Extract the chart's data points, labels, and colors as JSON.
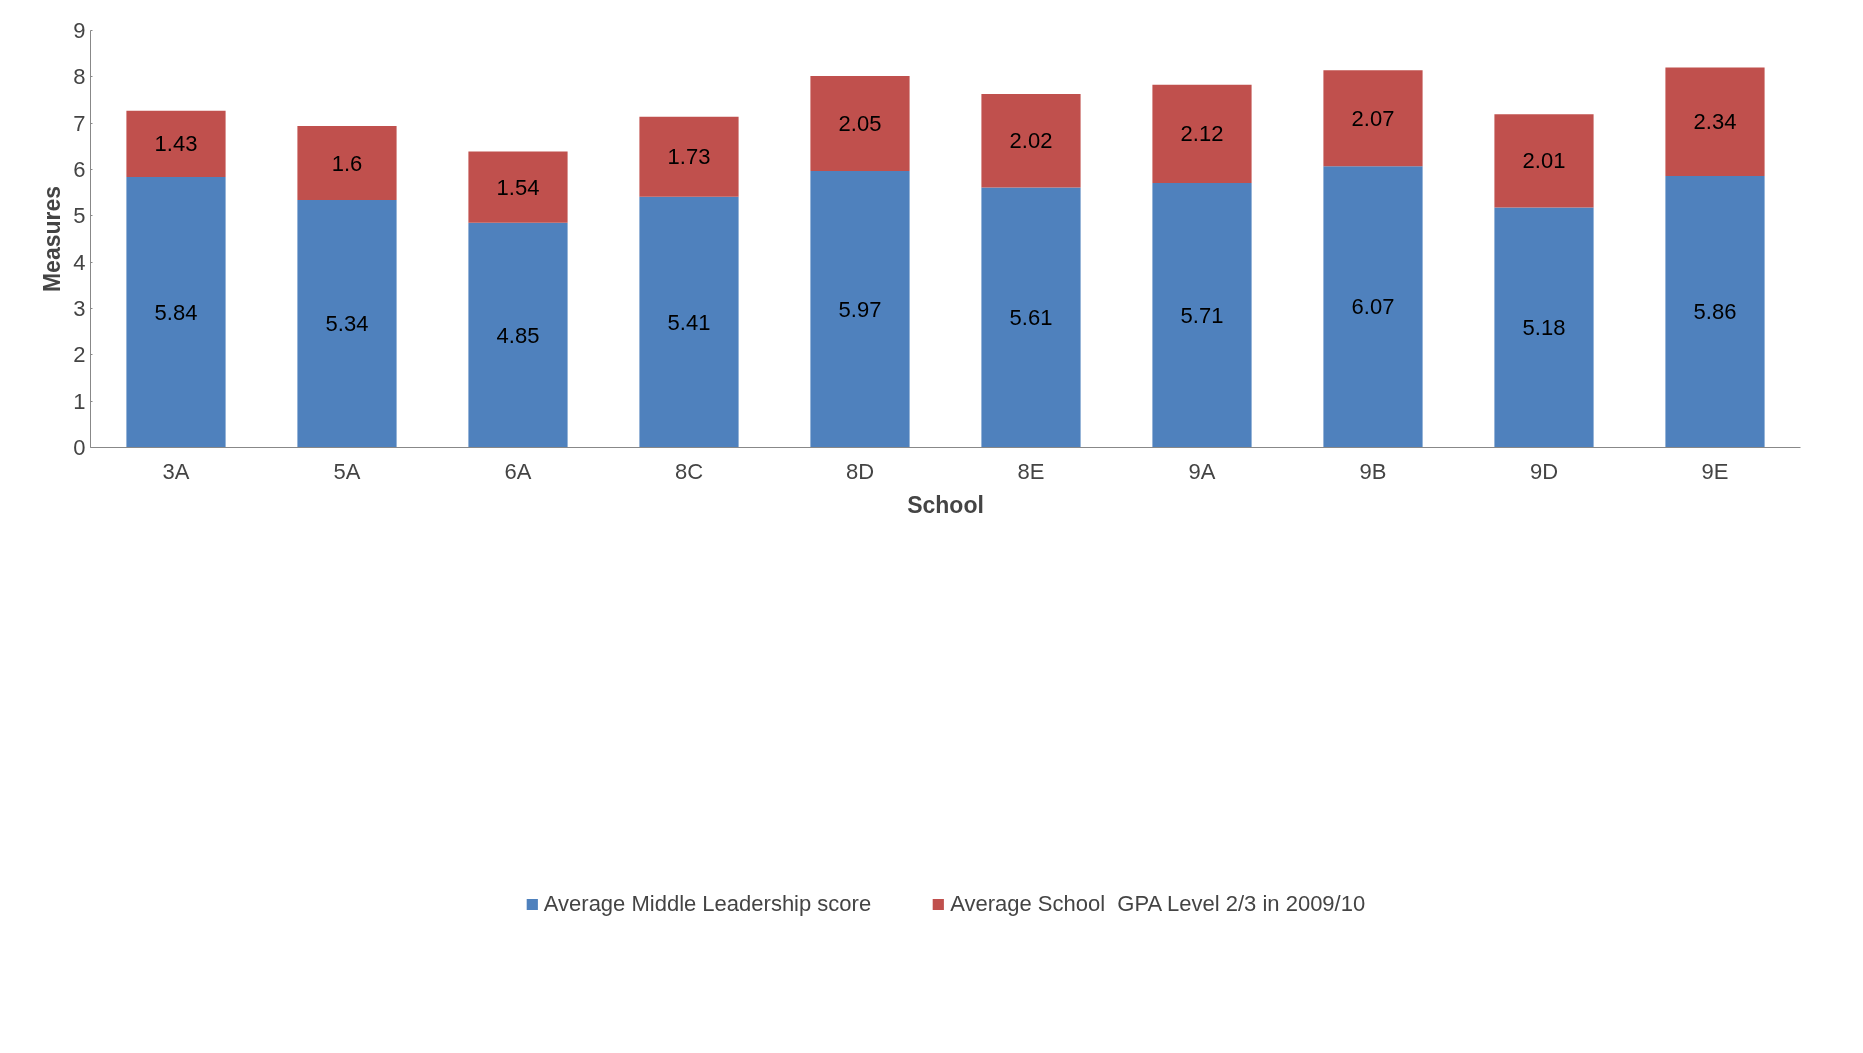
{
  "chart_data": {
    "type": "bar",
    "stacked": true,
    "xlabel": "School",
    "ylabel": "Measures",
    "categories": [
      "3A",
      "5A",
      "6A",
      "8C",
      "8D",
      "8E",
      "9A",
      "9B",
      "9D",
      "9E"
    ],
    "series": [
      {
        "name": "Average Middle Leadership score",
        "color": "#4f81bd",
        "values": [
          5.84,
          5.34,
          4.85,
          5.41,
          5.97,
          5.61,
          5.71,
          6.07,
          5.18,
          5.86
        ]
      },
      {
        "name": "Average School  GPA Level 2/3 in 2009/10",
        "color": "#c0504d",
        "values": [
          1.43,
          1.6,
          1.54,
          1.73,
          2.05,
          2.02,
          2.12,
          2.07,
          2.01,
          2.34
        ]
      }
    ],
    "ylim": [
      0,
      9
    ],
    "yticks": [
      0,
      1,
      2,
      3,
      4,
      5,
      6,
      7,
      8,
      9
    ],
    "grid": false,
    "legend": "bottom",
    "data_labels": true
  }
}
